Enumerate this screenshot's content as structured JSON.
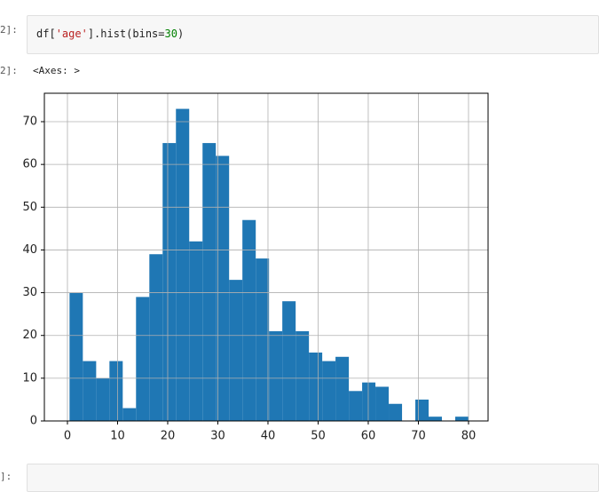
{
  "cells": [
    {
      "prompt": "2]:",
      "code": [
        "df[",
        "'age'",
        "].hist(bins=",
        "30",
        ")"
      ],
      "output_prompt": "2]:",
      "output": "<Axes: >"
    },
    {
      "prompt": "]:"
    }
  ],
  "chart_data": {
    "type": "histogram",
    "color": "#1f77b4",
    "grid": true,
    "bins": [
      0.42,
      3.07,
      5.73,
      8.38,
      11.03,
      13.68,
      16.34,
      18.99,
      21.64,
      24.29,
      26.95,
      29.6,
      32.25,
      34.9,
      37.56,
      40.21,
      42.86,
      45.52,
      48.17,
      50.82,
      53.47,
      56.13,
      58.78,
      61.43,
      64.08,
      66.74,
      69.39,
      72.04,
      74.69,
      77.35,
      80
    ],
    "values": [
      30,
      14,
      10,
      14,
      3,
      29,
      39,
      65,
      73,
      42,
      65,
      62,
      33,
      47,
      38,
      21,
      28,
      21,
      16,
      14,
      15,
      7,
      9,
      8,
      4,
      0,
      5,
      1,
      0,
      1
    ],
    "xlim": [
      -4.6,
      83.9
    ],
    "ylim": [
      0,
      76.65
    ],
    "xticks": [
      0,
      10,
      20,
      30,
      40,
      50,
      60,
      70,
      80
    ],
    "yticks": [
      0,
      10,
      20,
      30,
      40,
      50,
      60,
      70
    ]
  }
}
